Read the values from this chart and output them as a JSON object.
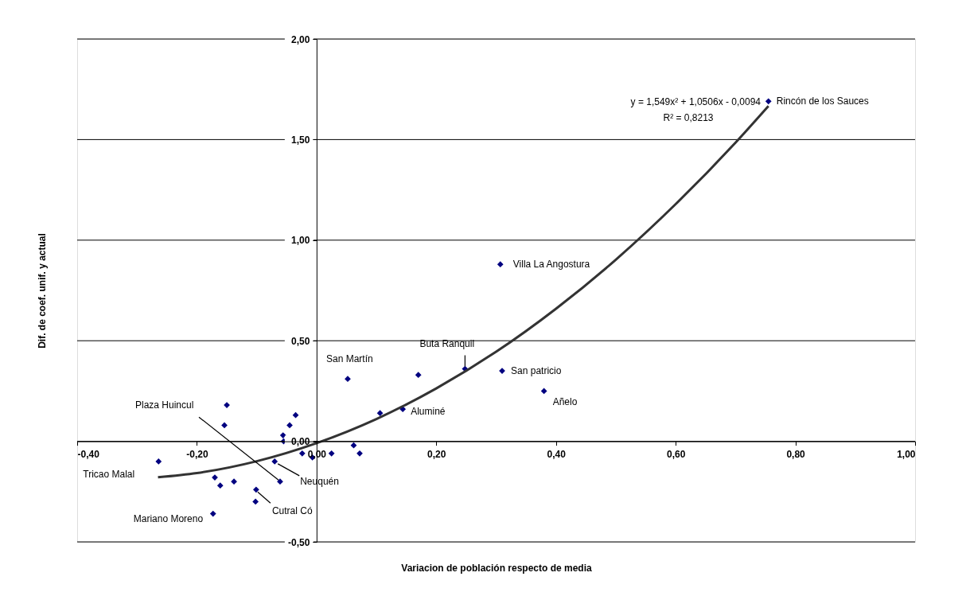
{
  "chart_data": {
    "type": "scatter",
    "xlabel": "Variacion de población respecto de media",
    "ylabel": "Dif. de coef. unif. y actual",
    "xlim": [
      -0.4,
      1.0
    ],
    "xticks": [
      {
        "value": -0.4,
        "label": "-0,40"
      },
      {
        "value": -0.2,
        "label": "-0,20"
      },
      {
        "value": 0,
        "label": "0,00"
      },
      {
        "value": 0.2,
        "label": "0,20"
      },
      {
        "value": 0.4,
        "label": "0,40"
      },
      {
        "value": 0.6,
        "label": "0,60"
      },
      {
        "value": 0.8,
        "label": "0,80"
      },
      {
        "value": 1.0,
        "label": "1,00"
      }
    ],
    "ylim": [
      -0.5,
      2.0
    ],
    "yticks": [
      {
        "value": -0.5,
        "label": "-0,50"
      },
      {
        "value": 0,
        "label": "0,00"
      },
      {
        "value": 0.5,
        "label": "0,50"
      },
      {
        "value": 1.0,
        "label": "1,00"
      },
      {
        "value": 1.5,
        "label": "1,50"
      },
      {
        "value": 2.0,
        "label": "2,00"
      }
    ],
    "grid": "y",
    "series": [
      {
        "type": "scatter",
        "color": "#000080",
        "marker": "diamond",
        "x": [
          -0.264,
          -0.15,
          -0.154,
          -0.17,
          -0.161,
          -0.138,
          -0.173,
          -0.101,
          -0.102,
          -0.07,
          -0.061,
          -0.056,
          -0.055,
          -0.045,
          -0.035,
          -0.024,
          -0.007,
          0.025,
          0.052,
          0.062,
          0.072,
          0.106,
          0.144,
          0.17,
          0.248,
          0.31,
          0.38,
          0.307,
          0.755
        ],
        "values": [
          -0.1,
          0.18,
          0.08,
          -0.18,
          -0.22,
          -0.2,
          -0.36,
          -0.24,
          -0.3,
          -0.1,
          -0.2,
          0.03,
          0.0,
          0.08,
          0.13,
          -0.06,
          -0.08,
          -0.06,
          0.31,
          -0.02,
          -0.06,
          0.14,
          0.16,
          0.33,
          0.36,
          0.35,
          0.25,
          0.88,
          1.69
        ]
      },
      {
        "type": "line",
        "color": "#333333",
        "marker": "none",
        "line_style": "solid",
        "x": [
          -0.265,
          -0.2,
          -0.1,
          0,
          0.1,
          0.2,
          0.3,
          0.4,
          0.5,
          0.6,
          0.7,
          0.755
        ],
        "values": [
          -0.179,
          -0.158,
          -0.099,
          -0.009,
          0.111,
          0.263,
          0.445,
          0.659,
          0.903,
          1.179,
          1.485,
          1.667
        ]
      }
    ],
    "annotations": [
      {
        "text": "Rincón de los Sauces",
        "x": 0.755,
        "y": 1.69
      },
      {
        "text": "Villa La Angostura",
        "x": 0.307,
        "y": 0.88
      },
      {
        "text": "Buta Ranquil",
        "x": 0.248,
        "y": 0.36
      },
      {
        "text": "San patricio",
        "x": 0.31,
        "y": 0.35
      },
      {
        "text": "Añelo",
        "x": 0.38,
        "y": 0.25
      },
      {
        "text": "Aluminé",
        "x": 0.144,
        "y": 0.16
      },
      {
        "text": "San Martín",
        "x": 0.052,
        "y": 0.31
      },
      {
        "text": "Plaza Huincul",
        "x": -0.061,
        "y": -0.2
      },
      {
        "text": "Neuquén",
        "x": -0.07,
        "y": -0.1
      },
      {
        "text": "Cutral Có",
        "x": -0.101,
        "y": -0.24
      },
      {
        "text": "Tricao Malal",
        "x": -0.264,
        "y": -0.1
      },
      {
        "text": "Mariano Moreno",
        "x": -0.173,
        "y": -0.36
      },
      "y = 1,549x² + 1,0506x - 0,0094",
      "R² = 0,8213"
    ]
  }
}
